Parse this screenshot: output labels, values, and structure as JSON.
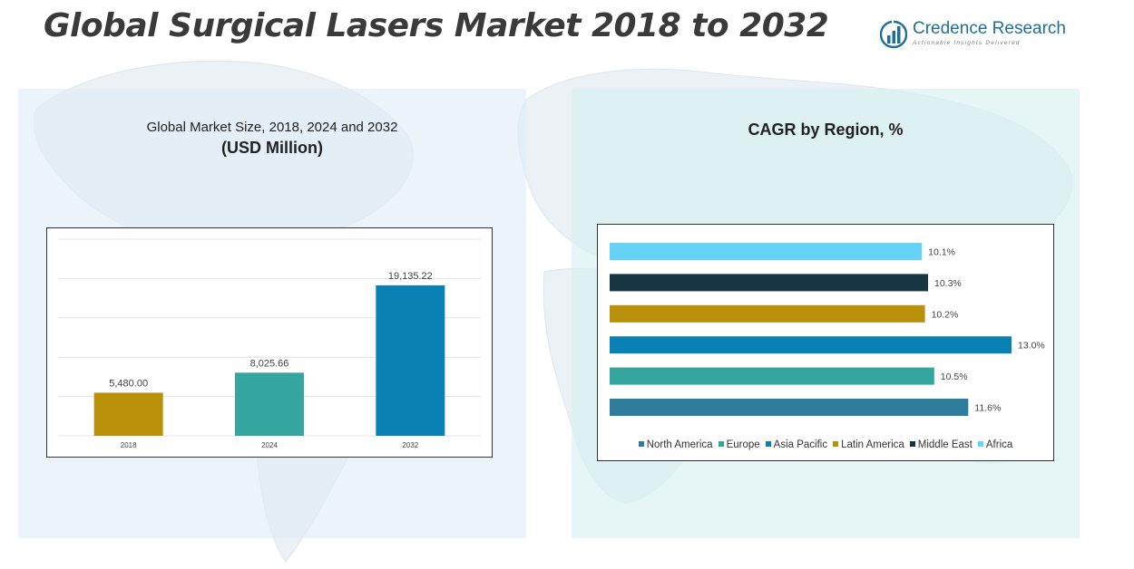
{
  "header": {
    "title": "Global Surgical Lasers Market 2018 to 2032",
    "brand_name": "Credence Research",
    "brand_tagline": "Actionable Insights Delivered"
  },
  "colors": {
    "navy": "#1f5f85",
    "gold": "#b8900a",
    "teal": "#35a5a0",
    "blue": "#0a80b4",
    "dark": "#163645",
    "sky": "#66d3f6",
    "steel": "#2d7c9c"
  },
  "chart_data": [
    {
      "type": "bar",
      "title": "Global Market Size, 2018, 2024 and 2032",
      "subtitle": "(USD Million)",
      "categories": [
        "2018",
        "2024",
        "2032"
      ],
      "values": [
        5480.0,
        8025.66,
        19135.22
      ],
      "labels": [
        "5,480.00",
        "8,025.66",
        "19,135.22"
      ],
      "bar_colors": [
        "#b8900a",
        "#35a5a0",
        "#0a80b4"
      ],
      "ylim": [
        0,
        25000
      ],
      "grid": true,
      "xlabel": "",
      "ylabel": ""
    },
    {
      "type": "bar",
      "orientation": "horizontal",
      "title": "CAGR by Region, %",
      "categories": [
        "North America",
        "Europe",
        "Asia Pacific",
        "Latin America",
        "Middle East",
        "Africa"
      ],
      "values": [
        11.6,
        10.5,
        13.0,
        10.2,
        10.3,
        10.1
      ],
      "labels": [
        "11.6%",
        "10.5%",
        "13.0%",
        "10.2%",
        "10.3%",
        "10.1%"
      ],
      "colors": [
        "#2d7c9c",
        "#35a5a0",
        "#0a80b4",
        "#b8900a",
        "#163645",
        "#66d3f6"
      ],
      "xlim": [
        0,
        13.0
      ],
      "legend_position": "bottom"
    }
  ]
}
